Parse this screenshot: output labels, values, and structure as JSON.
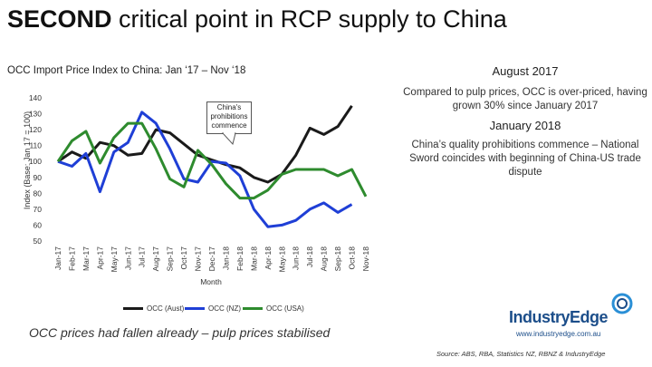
{
  "title": {
    "bold": "SECOND",
    "rest": " critical point in RCP supply to China"
  },
  "subtitle": "OCC Import Price Index to China: Jan ‘17 – Nov ‘18",
  "events": [
    {
      "head": "August 2017",
      "body": "Compared to pulp prices, OCC is over-priced, having grown 30% since January 2017"
    },
    {
      "head": "January 2018",
      "body": "China’s quality prohibitions commence – National Sword coincides with beginning of China-US trade dispute"
    }
  ],
  "callout": "China's prohibitions commence",
  "footer_note": "OCC prices had fallen already – pulp prices stabilised",
  "logo": {
    "name": "IndustryEdge",
    "url": "www.industryedge.com.au"
  },
  "source": "Source: ABS, RBA, Statistics NZ, RBNZ  & IndustryEdge",
  "colors": {
    "aust": "#1a1a1a",
    "nz": "#1f3fd6",
    "usa": "#2e8b2e"
  },
  "chart_data": {
    "type": "line",
    "xlabel": "Month",
    "ylabel": "Index (Base: Jan 17 = 100)",
    "ylim": [
      50,
      140
    ],
    "yticks": [
      50,
      60,
      70,
      80,
      90,
      100,
      110,
      120,
      130,
      140
    ],
    "categories": [
      "Jan-17",
      "Feb-17",
      "Mar-17",
      "Apr-17",
      "May-17",
      "Jun-17",
      "Jul-17",
      "Aug-17",
      "Sep-17",
      "Oct-17",
      "Nov-17",
      "Dec-17",
      "Jan-18",
      "Feb-18",
      "Mar-18",
      "Apr-18",
      "May-18",
      "Jun-18",
      "Jul-18",
      "Aug-18",
      "Sep-18",
      "Oct-18",
      "Nov-18"
    ],
    "series": [
      {
        "name": "OCC (Aust)",
        "values": [
          100,
          106,
          102,
          112,
          110,
          104,
          105,
          120,
          118,
          111,
          104,
          101,
          98,
          96,
          90,
          87,
          92,
          104,
          121,
          117,
          122,
          135,
          null
        ]
      },
      {
        "name": "OCC (NZ)",
        "values": [
          100,
          97,
          105,
          81,
          106,
          112,
          131,
          124,
          108,
          89,
          87,
          100,
          99,
          91,
          70,
          59,
          60,
          63,
          70,
          74,
          68,
          73,
          null
        ]
      },
      {
        "name": "OCC (USA)",
        "values": [
          100,
          113,
          119,
          99,
          115,
          124,
          124,
          108,
          89,
          84,
          107,
          98,
          86,
          77,
          77,
          82,
          92,
          95,
          95,
          95,
          91,
          95,
          78
        ]
      }
    ]
  }
}
